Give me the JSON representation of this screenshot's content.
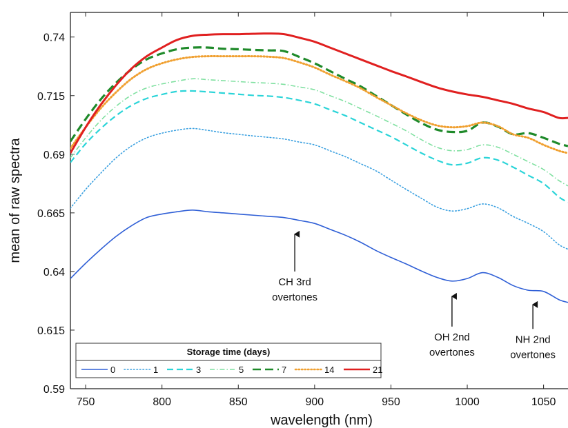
{
  "chart_data": {
    "type": "line",
    "title": "",
    "xlabel": "wavelength (nm)",
    "ylabel": "mean of raw spectra",
    "xlim": [
      740,
      1066
    ],
    "ylim": [
      0.59,
      0.7505
    ],
    "xticks": [
      750,
      800,
      850,
      900,
      950,
      1000,
      1050
    ],
    "yticks": [
      0.59,
      0.615,
      0.64,
      0.665,
      0.69,
      0.715,
      0.74
    ],
    "ytick_labels": [
      "0.59",
      "0.615",
      "0.64",
      "0.665",
      "0.69",
      "0.715",
      "0.74"
    ],
    "grid": false,
    "x": [
      740,
      750,
      760,
      770,
      780,
      790,
      800,
      810,
      820,
      830,
      840,
      850,
      860,
      870,
      880,
      890,
      900,
      910,
      920,
      930,
      940,
      950,
      960,
      970,
      980,
      990,
      1000,
      1010,
      1020,
      1030,
      1040,
      1050,
      1060,
      1066
    ],
    "legend": {
      "title": "Storage time (days)",
      "placement": "bottom-left"
    },
    "series": [
      {
        "name": "0",
        "color": "#2f5fd6",
        "style": "solid",
        "width": 1.6,
        "values": [
          0.637,
          0.6435,
          0.6495,
          0.655,
          0.6595,
          0.663,
          0.6645,
          0.6655,
          0.6662,
          0.6655,
          0.665,
          0.6645,
          0.664,
          0.6635,
          0.663,
          0.6618,
          0.6605,
          0.658,
          0.6555,
          0.6525,
          0.649,
          0.646,
          0.6432,
          0.6402,
          0.6375,
          0.6359,
          0.637,
          0.6395,
          0.6375,
          0.634,
          0.632,
          0.6315,
          0.628,
          0.6268
        ]
      },
      {
        "name": "1",
        "color": "#3aa0e0",
        "style": "dotted",
        "width": 1.6,
        "values": [
          0.667,
          0.675,
          0.682,
          0.6885,
          0.6935,
          0.697,
          0.699,
          0.7003,
          0.701,
          0.7002,
          0.6992,
          0.6985,
          0.6978,
          0.6972,
          0.6965,
          0.6952,
          0.694,
          0.6915,
          0.689,
          0.686,
          0.683,
          0.679,
          0.675,
          0.6712,
          0.6675,
          0.6658,
          0.6668,
          0.6688,
          0.6672,
          0.6635,
          0.6605,
          0.657,
          0.6515,
          0.6495
        ]
      },
      {
        "name": "3",
        "color": "#2ad4d8",
        "style": "dashed",
        "width": 2.2,
        "values": [
          0.6865,
          0.6945,
          0.701,
          0.7065,
          0.7108,
          0.7138,
          0.7155,
          0.7168,
          0.717,
          0.7166,
          0.7161,
          0.7156,
          0.7151,
          0.7148,
          0.7142,
          0.713,
          0.7115,
          0.709,
          0.7065,
          0.7035,
          0.7005,
          0.6975,
          0.694,
          0.6905,
          0.6875,
          0.6855,
          0.6862,
          0.6885,
          0.6875,
          0.6845,
          0.681,
          0.6775,
          0.6718,
          0.6695
        ]
      },
      {
        "name": "5",
        "color": "#7fe0a0",
        "style": "dashdot",
        "width": 1.6,
        "values": [
          0.6885,
          0.697,
          0.7045,
          0.7105,
          0.7152,
          0.7183,
          0.72,
          0.7212,
          0.7222,
          0.7218,
          0.7214,
          0.721,
          0.7206,
          0.7203,
          0.7198,
          0.7187,
          0.7175,
          0.715,
          0.7125,
          0.7095,
          0.7065,
          0.7033,
          0.7,
          0.6962,
          0.693,
          0.6915,
          0.692,
          0.694,
          0.693,
          0.69,
          0.6868,
          0.6835,
          0.6788,
          0.6765
        ]
      },
      {
        "name": "7",
        "color": "#1f8a2a",
        "style": "longdash",
        "width": 3.2,
        "values": [
          0.6955,
          0.705,
          0.7135,
          0.7205,
          0.7262,
          0.7305,
          0.733,
          0.7348,
          0.7355,
          0.7355,
          0.735,
          0.7348,
          0.7345,
          0.7343,
          0.734,
          0.7315,
          0.7288,
          0.7255,
          0.7222,
          0.719,
          0.715,
          0.711,
          0.707,
          0.7033,
          0.7005,
          0.6995,
          0.7,
          0.7035,
          0.7018,
          0.6985,
          0.699,
          0.697,
          0.6945,
          0.6935
        ]
      },
      {
        "name": "14",
        "color": "#f0a030",
        "style": "dotted",
        "width": 3.0,
        "values": [
          0.6925,
          0.7015,
          0.7097,
          0.7165,
          0.7222,
          0.7263,
          0.7288,
          0.7305,
          0.7315,
          0.7318,
          0.7318,
          0.7318,
          0.7318,
          0.7316,
          0.731,
          0.7292,
          0.727,
          0.724,
          0.7212,
          0.7182,
          0.7145,
          0.711,
          0.7075,
          0.7045,
          0.7023,
          0.7015,
          0.702,
          0.7035,
          0.702,
          0.6985,
          0.697,
          0.694,
          0.6915,
          0.6905
        ]
      },
      {
        "name": "21",
        "color": "#e02020",
        "style": "solid",
        "width": 3.0,
        "values": [
          0.6905,
          0.7015,
          0.7112,
          0.7195,
          0.7265,
          0.7318,
          0.7355,
          0.7388,
          0.7405,
          0.741,
          0.7412,
          0.7412,
          0.7414,
          0.7415,
          0.7412,
          0.7397,
          0.738,
          0.7355,
          0.733,
          0.7305,
          0.728,
          0.7255,
          0.7232,
          0.7208,
          0.7185,
          0.7168,
          0.7155,
          0.7145,
          0.713,
          0.7115,
          0.7095,
          0.708,
          0.7055,
          0.7055
        ]
      }
    ],
    "annotations": [
      {
        "id": "ch",
        "lines": [
          "CH 3rd",
          "overtones"
        ],
        "x": 887,
        "y_tip": 0.6565,
        "y_tail": 0.64
      },
      {
        "id": "oh",
        "lines": [
          "OH 2nd",
          "overtones"
        ],
        "x": 990,
        "y_tip": 0.63,
        "y_tail": 0.6165
      },
      {
        "id": "nh",
        "lines": [
          "NH 2nd",
          "overtones"
        ],
        "x": 1043,
        "y_tip": 0.6265,
        "y_tail": 0.6155
      }
    ]
  }
}
